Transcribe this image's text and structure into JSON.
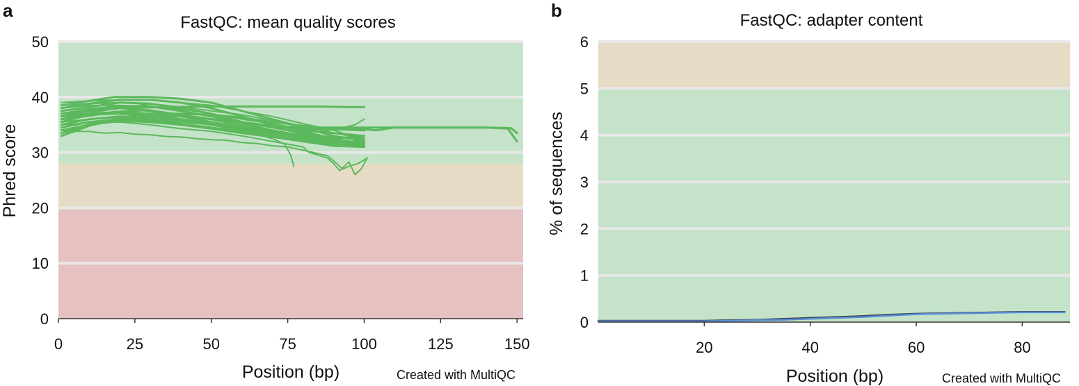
{
  "panels": [
    {
      "letter": "a",
      "credit": "Created with MultiQC"
    },
    {
      "letter": "b",
      "credit": "Created with MultiQC"
    }
  ],
  "chart_data": [
    {
      "type": "line",
      "title": "FastQC: mean quality scores",
      "xlabel": "Position (bp)",
      "ylabel": "Phred score",
      "xlim": [
        0,
        152
      ],
      "ylim": [
        0,
        50
      ],
      "xticks": [
        0,
        25,
        50,
        75,
        100,
        125,
        150
      ],
      "yticks": [
        0,
        10,
        20,
        30,
        40,
        50
      ],
      "grid": true,
      "bands": [
        {
          "from": 28,
          "to": 50,
          "color": "#c4e3c8"
        },
        {
          "from": 20,
          "to": 28,
          "color": "#e6dcc6"
        },
        {
          "from": 0,
          "to": 20,
          "color": "#e6c1c1"
        }
      ],
      "line_color": "#5cb85c",
      "series": [
        {
          "x": [
            1,
            10,
            18,
            30,
            40,
            50,
            60,
            70,
            80,
            90,
            100
          ],
          "y": [
            38.5,
            39.3,
            40.0,
            40.0,
            39.7,
            39.0,
            37.5,
            36.0,
            34.5,
            33.0,
            32.0
          ]
        },
        {
          "x": [
            1,
            10,
            20,
            30,
            40,
            50,
            60,
            70,
            80,
            90,
            100
          ],
          "y": [
            38.0,
            38.8,
            39.5,
            39.5,
            39.0,
            38.0,
            36.5,
            35.0,
            33.8,
            32.5,
            31.5
          ]
        },
        {
          "x": [
            1,
            10,
            20,
            30,
            40,
            50,
            60,
            70,
            80,
            90,
            100
          ],
          "y": [
            37.5,
            38.2,
            39.0,
            38.8,
            38.0,
            37.0,
            35.5,
            34.5,
            33.5,
            32.2,
            31.0
          ]
        },
        {
          "x": [
            1,
            10,
            20,
            30,
            40,
            50,
            60,
            70,
            80,
            90,
            100
          ],
          "y": [
            37.0,
            37.8,
            38.4,
            38.3,
            37.5,
            36.5,
            35.2,
            34.0,
            33.0,
            32.0,
            31.5
          ]
        },
        {
          "x": [
            1,
            10,
            20,
            30,
            40,
            50,
            60,
            70,
            80,
            90,
            100
          ],
          "y": [
            36.5,
            37.5,
            38.0,
            37.6,
            36.8,
            36.0,
            34.8,
            33.8,
            33.2,
            32.8,
            32.5
          ]
        },
        {
          "x": [
            1,
            10,
            20,
            30,
            40,
            50,
            60,
            70,
            80,
            90,
            100
          ],
          "y": [
            36.0,
            37.0,
            37.3,
            37.0,
            36.5,
            35.5,
            34.5,
            33.5,
            32.8,
            32.5,
            33.0
          ]
        },
        {
          "x": [
            1,
            10,
            20,
            30,
            40,
            50,
            60,
            70,
            80,
            90,
            100
          ],
          "y": [
            35.5,
            36.8,
            37.0,
            36.6,
            36.0,
            35.3,
            34.3,
            33.4,
            32.6,
            31.8,
            32.0
          ]
        },
        {
          "x": [
            1,
            10,
            20,
            30,
            40,
            50,
            60,
            70,
            80,
            90,
            100
          ],
          "y": [
            35.0,
            36.0,
            36.5,
            36.3,
            35.8,
            35.0,
            34.0,
            33.0,
            32.3,
            31.8,
            31.8
          ]
        },
        {
          "x": [
            1,
            10,
            20,
            30,
            40,
            50,
            60,
            70,
            80,
            90,
            100
          ],
          "y": [
            34.5,
            35.5,
            36.0,
            35.8,
            35.2,
            34.5,
            33.8,
            33.0,
            32.0,
            31.5,
            31.2
          ]
        },
        {
          "x": [
            1,
            10,
            20,
            30,
            40,
            50,
            60,
            70,
            80,
            90,
            100
          ],
          "y": [
            34.0,
            35.0,
            35.7,
            35.5,
            35.0,
            34.3,
            33.5,
            32.8,
            32.0,
            31.2,
            31.0
          ]
        },
        {
          "x": [
            1,
            10,
            20,
            30,
            40,
            50,
            60,
            70,
            80,
            90,
            100
          ],
          "y": [
            33.5,
            35.0,
            36.0,
            36.5,
            36.5,
            36.0,
            35.5,
            34.8,
            34.0,
            33.5,
            33.0
          ]
        },
        {
          "x": [
            1,
            10,
            20,
            30,
            40,
            50,
            60,
            70,
            80,
            90,
            100
          ],
          "y": [
            33.0,
            34.8,
            36.2,
            37.0,
            37.0,
            36.8,
            36.3,
            35.5,
            34.8,
            34.2,
            34.0
          ]
        },
        {
          "x": [
            1,
            12,
            20,
            35,
            50,
            65,
            75,
            85,
            95,
            100
          ],
          "y": [
            37.0,
            37.5,
            38.0,
            38.2,
            38.3,
            38.3,
            38.3,
            38.3,
            38.2,
            38.2
          ]
        },
        {
          "x": [
            1,
            10,
            18,
            28,
            40,
            50,
            60,
            70,
            80,
            90,
            100,
            110,
            125,
            140,
            148,
            150
          ],
          "y": [
            36.5,
            37.0,
            38.0,
            38.5,
            37.5,
            36.5,
            35.5,
            34.8,
            34.5,
            34.5,
            34.5,
            34.5,
            34.5,
            34.5,
            34.4,
            33.5
          ]
        },
        {
          "x": [
            1,
            10,
            18,
            28,
            40,
            50,
            60,
            70,
            80,
            90,
            100,
            104,
            110,
            125,
            140,
            147,
            150
          ],
          "y": [
            36.0,
            36.6,
            37.3,
            37.6,
            36.8,
            36.0,
            35.3,
            34.8,
            34.5,
            34.3,
            34.2,
            34.0,
            34.5,
            34.5,
            34.5,
            34.3,
            32.0
          ]
        },
        {
          "x": [
            1,
            5,
            10,
            15,
            20,
            25,
            30,
            35,
            40,
            45,
            50,
            55,
            60,
            65,
            70,
            75,
            80,
            85,
            88,
            90,
            93,
            95,
            98,
            101
          ],
          "y": [
            34.0,
            33.8,
            33.8,
            33.5,
            33.6,
            33.3,
            33.2,
            32.9,
            32.8,
            32.5,
            32.3,
            32.2,
            31.8,
            31.6,
            31.2,
            31.0,
            30.4,
            29.8,
            29.4,
            28.5,
            27.0,
            27.5,
            28.0,
            29.0
          ]
        },
        {
          "x": [
            1,
            10,
            20,
            30,
            40,
            50,
            60,
            70,
            74,
            76,
            77
          ],
          "y": [
            35.5,
            36.0,
            36.3,
            36.0,
            35.5,
            35.0,
            34.0,
            32.5,
            31.5,
            29.5,
            27.5
          ]
        },
        {
          "x": [
            1,
            10,
            20,
            30,
            40,
            50,
            60,
            70,
            80,
            82,
            85,
            88,
            90,
            92,
            95,
            97,
            99,
            101
          ],
          "y": [
            35.0,
            35.3,
            35.5,
            35.0,
            34.3,
            33.8,
            33.0,
            32.0,
            31.0,
            30.0,
            29.5,
            29.0,
            28.0,
            26.7,
            28.3,
            26.0,
            27.0,
            29.0
          ]
        },
        {
          "x": [
            1,
            10,
            20,
            30,
            40,
            50,
            60,
            70,
            80,
            90,
            97,
            100
          ],
          "y": [
            38.0,
            38.5,
            38.5,
            38.3,
            37.8,
            37.0,
            36.0,
            35.2,
            34.2,
            34.0,
            35.0,
            36.0
          ]
        },
        {
          "x": [
            1,
            10,
            20,
            30,
            40,
            50,
            60,
            70,
            80,
            90,
            100
          ],
          "y": [
            39.0,
            39.3,
            39.5,
            39.5,
            39.0,
            38.5,
            37.5,
            36.5,
            35.2,
            34.0,
            32.3
          ]
        },
        {
          "x": [
            1,
            10,
            20,
            30,
            40,
            50,
            60,
            70,
            80,
            90,
            100
          ],
          "y": [
            38.5,
            38.8,
            39.0,
            38.8,
            38.2,
            37.5,
            36.8,
            35.8,
            34.8,
            33.5,
            32.5
          ]
        }
      ]
    },
    {
      "type": "line",
      "title": "FastQC: adapter content",
      "xlabel": "Position (bp)",
      "ylabel": "% of sequences",
      "xlim": [
        0,
        89
      ],
      "ylim": [
        0,
        6
      ],
      "xticks": [
        20,
        40,
        60,
        80
      ],
      "yticks": [
        0,
        1,
        2,
        3,
        4,
        5,
        6
      ],
      "grid": true,
      "bands": [
        {
          "from": 5,
          "to": 6,
          "color": "#e6dcc6"
        },
        {
          "from": 0,
          "to": 5,
          "color": "#c4e3c8"
        }
      ],
      "series": [
        {
          "color": "#3a3f55",
          "x": [
            0,
            10,
            20,
            25,
            30,
            35,
            40,
            45,
            50,
            55,
            60,
            65,
            70,
            75,
            80,
            85,
            88
          ],
          "y": [
            0.03,
            0.03,
            0.03,
            0.04,
            0.05,
            0.07,
            0.09,
            0.11,
            0.13,
            0.16,
            0.18,
            0.19,
            0.2,
            0.21,
            0.22,
            0.22,
            0.22
          ]
        },
        {
          "color": "#5b8fd6",
          "x": [
            0,
            10,
            20,
            25,
            30,
            35,
            40,
            45,
            50,
            55,
            60,
            65,
            70,
            75,
            80,
            85,
            88
          ],
          "y": [
            0.02,
            0.02,
            0.02,
            0.03,
            0.04,
            0.05,
            0.07,
            0.09,
            0.11,
            0.14,
            0.17,
            0.18,
            0.19,
            0.2,
            0.21,
            0.21,
            0.21
          ]
        }
      ]
    }
  ]
}
